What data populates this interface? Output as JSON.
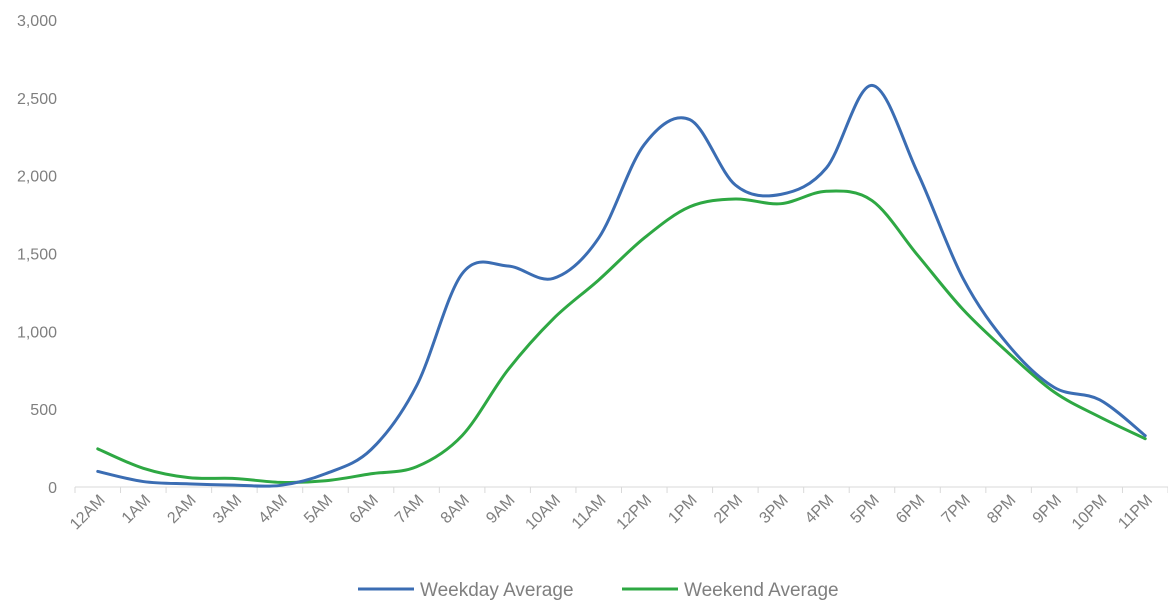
{
  "chart_data": {
    "type": "line",
    "title": "",
    "xlabel": "",
    "ylabel": "",
    "ylim": [
      0,
      3000
    ],
    "yticks": [
      "0",
      "500",
      "1,000",
      "1,500",
      "2,000",
      "2,500",
      "3,000"
    ],
    "categories": [
      "12AM",
      "1AM",
      "2AM",
      "3AM",
      "4AM",
      "5AM",
      "6AM",
      "7AM",
      "8AM",
      "9AM",
      "10AM",
      "11AM",
      "12PM",
      "1PM",
      "2PM",
      "3PM",
      "4PM",
      "5PM",
      "6PM",
      "7PM",
      "8PM",
      "9PM",
      "10PM",
      "11PM"
    ],
    "grid": false,
    "legend": "bottom",
    "series": [
      {
        "name": "Weekday Average",
        "color": "#3b6db3",
        "values": [
          100,
          35,
          20,
          12,
          10,
          85,
          240,
          650,
          1370,
          1420,
          1340,
          1600,
          2200,
          2360,
          1940,
          1880,
          2050,
          2580,
          2020,
          1340,
          910,
          640,
          560,
          330
        ]
      },
      {
        "name": "Weekend Average",
        "color": "#2ea843",
        "values": [
          245,
          120,
          60,
          55,
          30,
          40,
          85,
          130,
          330,
          750,
          1080,
          1330,
          1600,
          1800,
          1850,
          1820,
          1900,
          1840,
          1490,
          1140,
          860,
          610,
          450,
          310
        ]
      }
    ]
  }
}
